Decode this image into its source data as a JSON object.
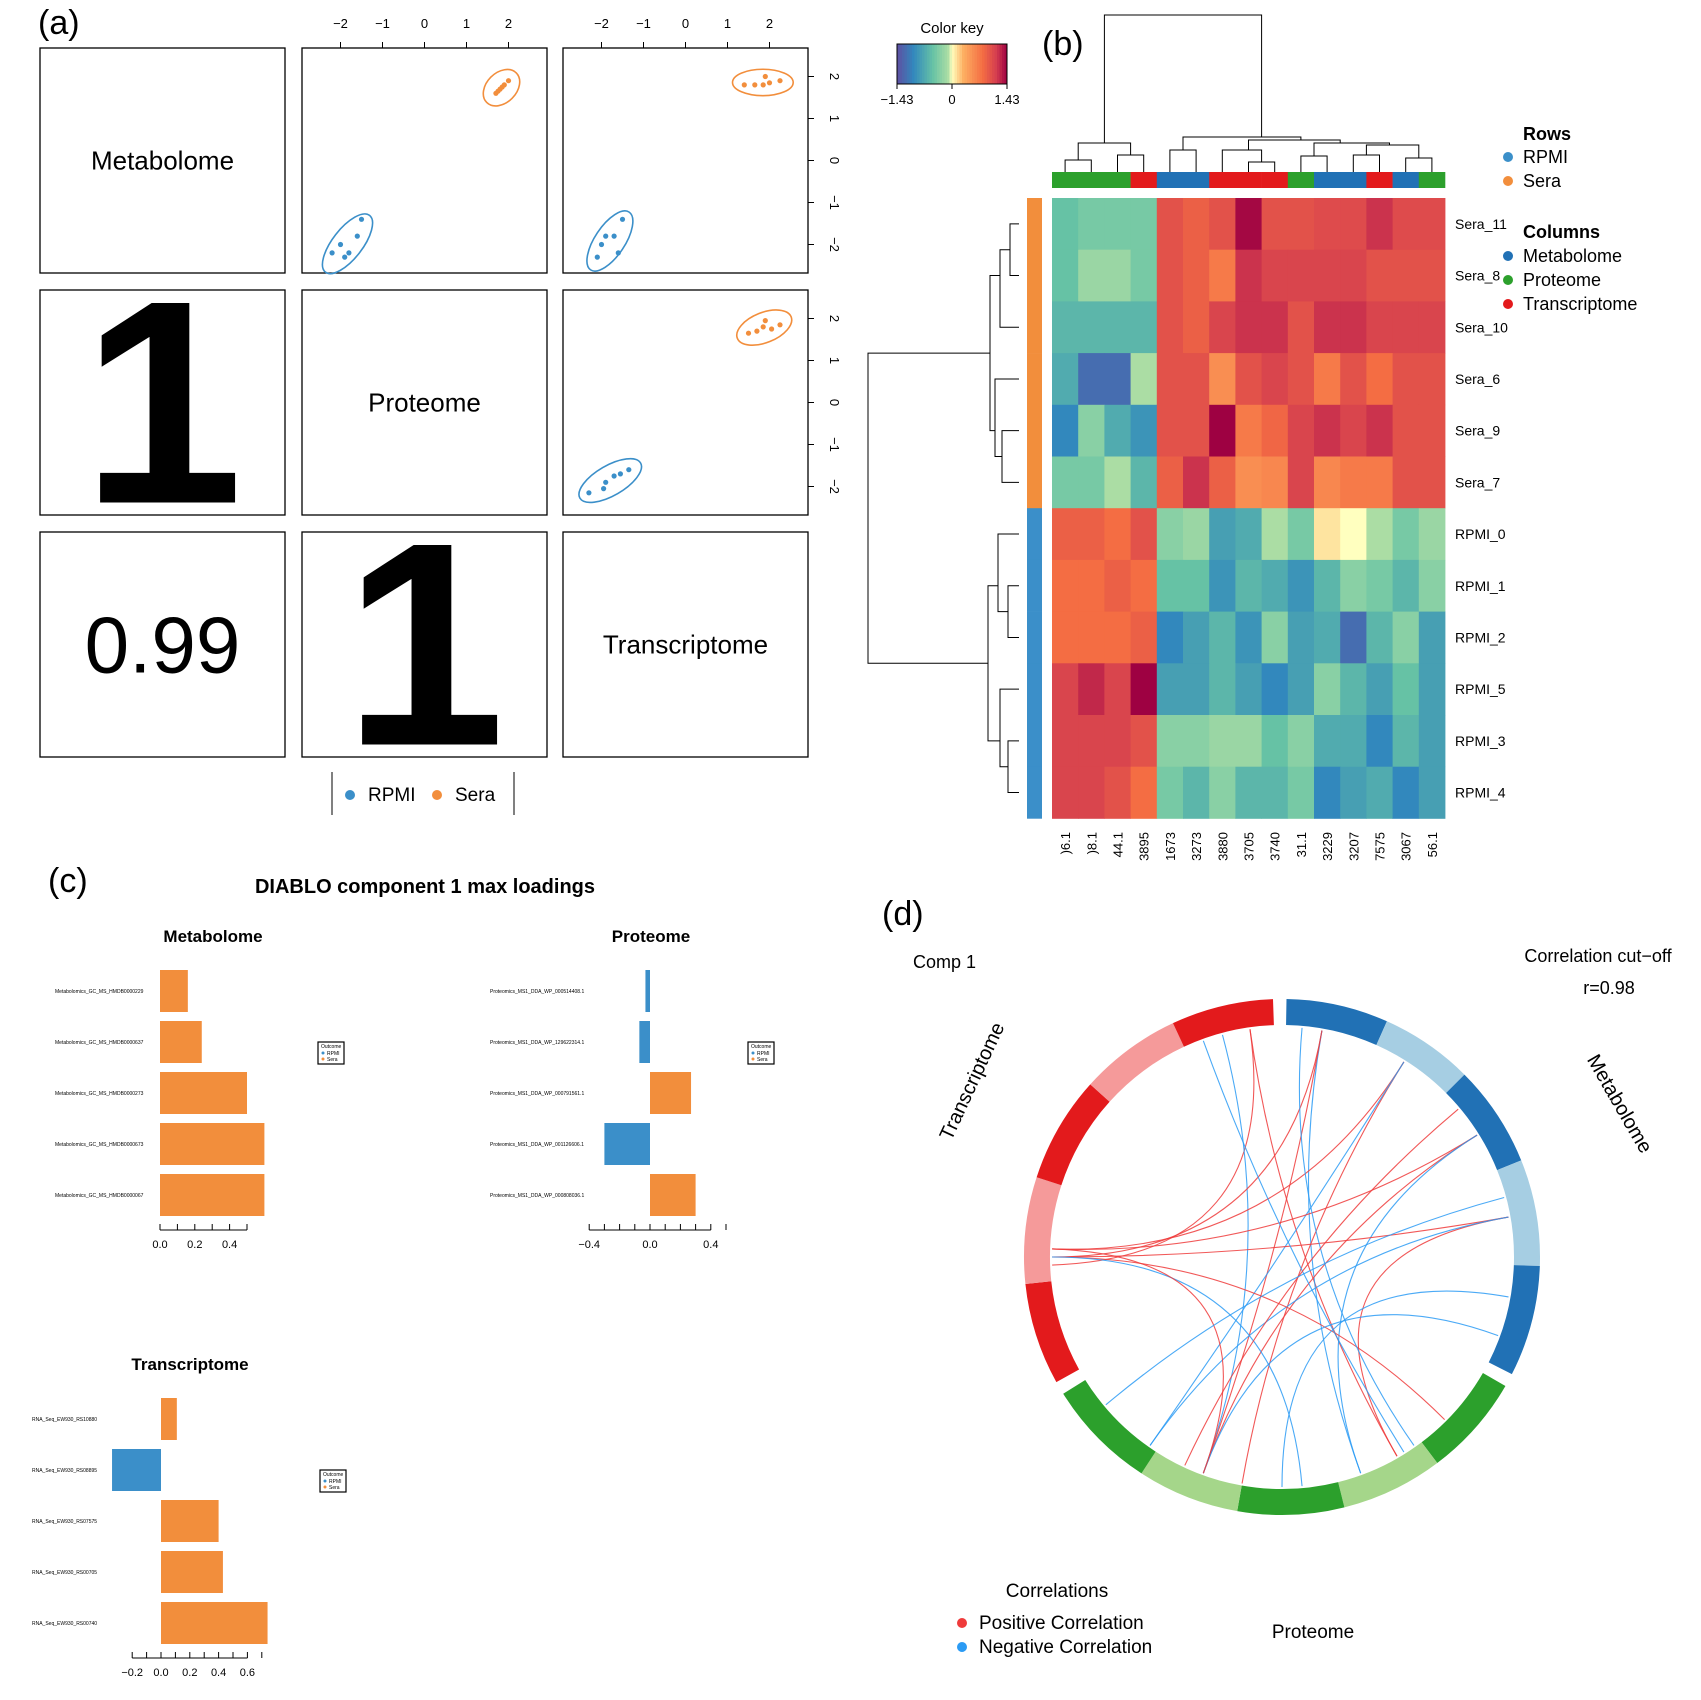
{
  "panel_letters": {
    "a": "(a)",
    "b": "(b)",
    "c": "(c)",
    "d": "(d)"
  },
  "colors": {
    "rpmi": "#3b8fc9",
    "sera": "#f28e3c",
    "metabolome": "#2171b5",
    "metabolome_light": "#a6cee3",
    "proteome": "#2ca02c",
    "proteome_light": "#a5d68a",
    "transcriptome": "#e31a1c",
    "transcriptome_light": "#f59a9a",
    "positive": "#ef3b3b",
    "negative": "#2b9bf4"
  },
  "chart_data": [
    {
      "type": "scatter",
      "id": "a",
      "blocks": [
        "Metabolome",
        "Proteome",
        "Transcriptome"
      ],
      "tick_labels": [
        "−2",
        "−1",
        "0",
        "1",
        "2"
      ],
      "correlations": [
        {
          "row": 1,
          "col": 0,
          "label": "1"
        },
        {
          "row": 2,
          "col": 0,
          "label": "0.99"
        },
        {
          "row": 2,
          "col": 1,
          "label": "1"
        }
      ],
      "scatters": [
        {
          "row": 0,
          "col": 1,
          "rpmi": [
            [
              -1.5,
              -1.4
            ],
            [
              -1.6,
              -1.8
            ],
            [
              -1.8,
              -2.2
            ],
            [
              -2.0,
              -2.0
            ],
            [
              -2.2,
              -2.2
            ],
            [
              -1.9,
              -2.3
            ]
          ],
          "sera": [
            [
              1.7,
              1.6
            ],
            [
              1.8,
              1.7
            ],
            [
              1.9,
              1.8
            ],
            [
              2.0,
              1.9
            ],
            [
              1.85,
              1.75
            ],
            [
              1.75,
              1.65
            ]
          ]
        },
        {
          "row": 0,
          "col": 2,
          "rpmi": [
            [
              -1.5,
              -1.4
            ],
            [
              -1.9,
              -1.8
            ],
            [
              -1.7,
              -1.8
            ],
            [
              -2.0,
              -2.0
            ],
            [
              -1.6,
              -2.2
            ],
            [
              -2.1,
              -2.3
            ]
          ],
          "sera": [
            [
              1.4,
              1.8
            ],
            [
              1.65,
              1.8
            ],
            [
              1.85,
              1.8
            ],
            [
              2.0,
              1.85
            ],
            [
              2.25,
              1.9
            ],
            [
              1.9,
              2.0
            ]
          ]
        },
        {
          "row": 1,
          "col": 2,
          "rpmi": [
            [
              -1.35,
              -1.6
            ],
            [
              -1.55,
              -1.7
            ],
            [
              -1.7,
              -1.75
            ],
            [
              -1.9,
              -1.9
            ],
            [
              -1.95,
              -2.05
            ],
            [
              -2.3,
              -2.15
            ]
          ],
          "sera": [
            [
              1.5,
              1.65
            ],
            [
              1.7,
              1.7
            ],
            [
              1.85,
              1.8
            ],
            [
              2.05,
              1.75
            ],
            [
              2.25,
              1.85
            ],
            [
              1.9,
              1.95
            ]
          ]
        }
      ],
      "legend": [
        "RPMI",
        "Sera"
      ]
    },
    {
      "type": "heatmap",
      "id": "b",
      "color_key": {
        "title": "Color key",
        "min": "−1.43",
        "mid": "0",
        "max": "1.43",
        "range": [
          -1.43,
          1.43
        ]
      },
      "rows": [
        "Sera_11",
        "Sera_8",
        "Sera_10",
        "Sera_6",
        "Sera_9",
        "Sera_7",
        "RPMI_0",
        "RPMI_1",
        "RPMI_2",
        "RPMI_5",
        "RPMI_3",
        "RPMI_4"
      ],
      "row_groups": [
        "Sera",
        "Sera",
        "Sera",
        "Sera",
        "Sera",
        "Sera",
        "RPMI",
        "RPMI",
        "RPMI",
        "RPMI",
        "RPMI",
        "RPMI"
      ],
      "columns": [
        ")6.1",
        ")8.1",
        "44.1",
        "3895",
        "1673",
        "3273",
        "3880",
        "3705",
        "3740",
        "31.1",
        "3229",
        "3207",
        "7575",
        "3067",
        "56.1"
      ],
      "column_groups": [
        "Proteome",
        "Proteome",
        "Proteome",
        "Transcriptome",
        "Metabolome",
        "Metabolome",
        "Transcriptome",
        "Transcriptome",
        "Transcriptome",
        "Proteome",
        "Metabolome",
        "Metabolome",
        "Transcriptome",
        "Metabolome",
        "Proteome"
      ],
      "values": [
        [
          -0.5,
          -0.4,
          -0.4,
          -0.4,
          1.0,
          0.9,
          1.0,
          1.4,
          1.0,
          1.0,
          1.05,
          1.05,
          1.2,
          1.05,
          1.05
        ],
        [
          -0.5,
          -0.2,
          -0.2,
          -0.4,
          1.0,
          0.9,
          0.7,
          1.2,
          1.1,
          1.1,
          1.1,
          1.1,
          1.0,
          1.0,
          1.0
        ],
        [
          -0.6,
          -0.6,
          -0.6,
          -0.6,
          1.0,
          0.9,
          1.1,
          1.2,
          1.2,
          1.0,
          1.2,
          1.2,
          1.1,
          1.1,
          1.1
        ],
        [
          -0.7,
          -1.2,
          -1.2,
          -0.1,
          1.0,
          1.0,
          0.55,
          1.0,
          1.1,
          1.0,
          0.7,
          1.0,
          0.8,
          1.0,
          1.0
        ],
        [
          -1.0,
          -0.3,
          -0.7,
          -0.9,
          1.0,
          1.0,
          1.43,
          0.7,
          0.85,
          1.1,
          1.2,
          1.1,
          1.2,
          1.0,
          1.0
        ],
        [
          -0.4,
          -0.4,
          -0.1,
          -0.6,
          0.9,
          1.2,
          0.9,
          0.55,
          0.6,
          1.1,
          0.6,
          0.7,
          0.7,
          1.0,
          1.0
        ],
        [
          0.9,
          0.9,
          0.8,
          1.0,
          -0.3,
          -0.2,
          -0.8,
          -0.7,
          -0.1,
          -0.4,
          0.1,
          0.0,
          -0.1,
          -0.4,
          -0.2
        ],
        [
          0.8,
          0.8,
          0.9,
          0.8,
          -0.5,
          -0.5,
          -0.9,
          -0.6,
          -0.7,
          -0.9,
          -0.6,
          -0.3,
          -0.4,
          -0.6,
          -0.3
        ],
        [
          0.8,
          0.8,
          0.8,
          0.9,
          -1.0,
          -0.8,
          -0.6,
          -0.9,
          -0.3,
          -0.8,
          -0.7,
          -1.2,
          -0.6,
          -0.3,
          -0.8
        ],
        [
          1.1,
          1.25,
          1.1,
          1.43,
          -0.8,
          -0.8,
          -0.6,
          -0.8,
          -1.0,
          -0.8,
          -0.3,
          -0.6,
          -0.8,
          -0.5,
          -0.8
        ],
        [
          1.1,
          1.1,
          1.1,
          1.0,
          -0.3,
          -0.3,
          -0.2,
          -0.2,
          -0.5,
          -0.3,
          -0.7,
          -0.7,
          -1.0,
          -0.6,
          -0.8
        ],
        [
          1.1,
          1.1,
          1.0,
          0.8,
          -0.4,
          -0.6,
          -0.3,
          -0.6,
          -0.6,
          -0.4,
          -1.0,
          -0.8,
          -0.7,
          -1.0,
          -0.8
        ]
      ],
      "legend_rows_title": "Rows",
      "legend_rows": [
        "RPMI",
        "Sera"
      ],
      "legend_cols_title": "Columns",
      "legend_cols": [
        "Metabolome",
        "Proteome",
        "Transcriptome"
      ]
    },
    {
      "type": "bar",
      "id": "c",
      "title": "DIABLO component 1 max loadings",
      "subplots": [
        {
          "name": "Metabolome",
          "categories": [
            "Metabolomics_GC_MS_HMDB0000229",
            "Metabolomics_GC_MS_HMDB0000637",
            "Metabolomics_GC_MS_HMDB0000273",
            "Metabolomics_GC_MS_HMDB0000673",
            "Metabolomics_GC_MS_HMDB0000067"
          ],
          "values": [
            0.16,
            0.24,
            0.5,
            0.6,
            0.6
          ],
          "groups": [
            "Sera",
            "Sera",
            "Sera",
            "Sera",
            "Sera"
          ],
          "xlim": [
            0,
            0.6
          ],
          "ticks": [
            "0.0",
            "0.2",
            "0.4"
          ],
          "tick_values": [
            0,
            0.2,
            0.4
          ],
          "legend": {
            "title": "Outcome",
            "items": [
              "RPMI",
              "Sera"
            ]
          }
        },
        {
          "name": "Proteome",
          "categories": [
            "Proteomics_MS1_DDA_WP_000514408.1",
            "Proteomics_MS1_DDA_WP_129622314.1",
            "Proteomics_MS1_DDA_WP_000791561.1",
            "Proteomics_MS1_DDA_WP_001126606.1",
            "Proteomics_MS1_DDA_WP_000808036.1"
          ],
          "values": [
            -0.03,
            -0.07,
            0.27,
            -0.3,
            0.3
          ],
          "groups": [
            "RPMI",
            "RPMI",
            "Sera",
            "RPMI",
            "Sera"
          ],
          "xlim": [
            -0.4,
            0.4
          ],
          "ticks": [
            "−0.4",
            "0.0",
            "0.4"
          ],
          "tick_values": [
            -0.4,
            0,
            0.4
          ],
          "legend": {
            "title": "Outcome",
            "items": [
              "RPMI",
              "Sera"
            ]
          }
        },
        {
          "name": "Transcriptome",
          "categories": [
            "RNA_Seq_EW930_RS10880",
            "RNA_Seq_EW930_RS08895",
            "RNA_Seq_EW930_RS07575",
            "RNA_Seq_EW930_RS00705",
            "RNA_Seq_EW930_RS00740"
          ],
          "values": [
            0.11,
            -0.34,
            0.4,
            0.43,
            0.74
          ],
          "groups": [
            "Sera",
            "RPMI",
            "Sera",
            "Sera",
            "Sera"
          ],
          "xlim": [
            -0.3,
            0.7
          ],
          "ticks": [
            "−0.2",
            "0.0",
            "0.2",
            "0.4",
            "0.6"
          ],
          "tick_values": [
            -0.2,
            0,
            0.2,
            0.4,
            0.6
          ],
          "legend": {
            "title": "Outcome",
            "items": [
              "RPMI",
              "Sera"
            ]
          }
        }
      ]
    },
    {
      "type": "chord",
      "id": "d",
      "comp_label": "Comp 1",
      "cutoff_label": "Correlation cut−off",
      "cutoff_value": "r=0.98",
      "sector_labels": {
        "metabolome": "Metabolome",
        "proteome": "Proteome",
        "transcriptome": "Transcriptome"
      },
      "legend_title": "Correlations",
      "legend": [
        "Positive Correlation",
        "Negative Correlation"
      ]
    }
  ]
}
